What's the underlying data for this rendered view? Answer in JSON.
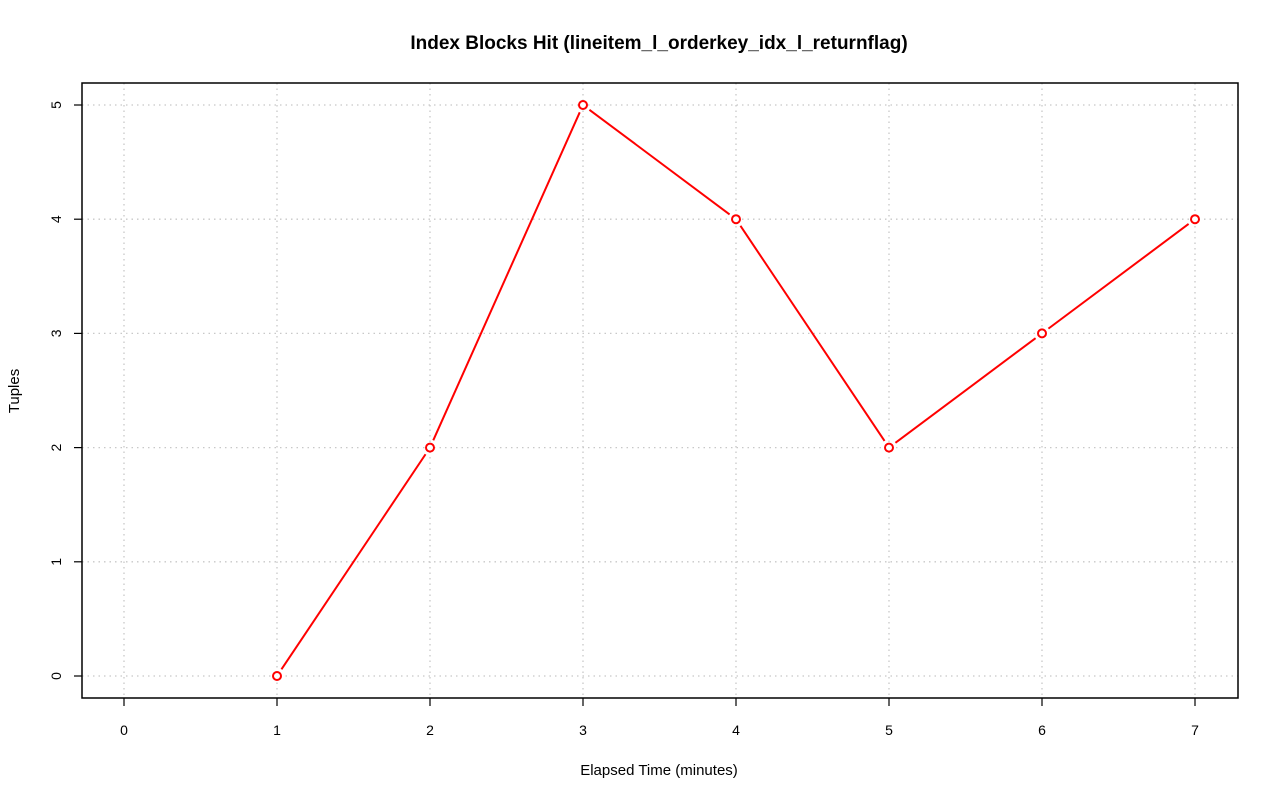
{
  "chart_data": {
    "type": "line",
    "title": "Index Blocks Hit (lineitem_l_orderkey_idx_l_returnflag)",
    "xlabel": "Elapsed Time (minutes)",
    "ylabel": "Tuples",
    "x": [
      1,
      2,
      3,
      4,
      5,
      6,
      7
    ],
    "series": [
      {
        "values": [
          0,
          2,
          5,
          4,
          2,
          3,
          4
        ]
      }
    ],
    "xlim": [
      0,
      7
    ],
    "ylim": [
      0,
      5
    ],
    "xticks": [
      0,
      1,
      2,
      3,
      4,
      5,
      6,
      7
    ],
    "yticks": [
      0,
      1,
      2,
      3,
      4,
      5
    ],
    "grid": true,
    "colors": {
      "series": "#ff0000",
      "grid": "#c8c8c8",
      "axis": "#000000"
    }
  }
}
